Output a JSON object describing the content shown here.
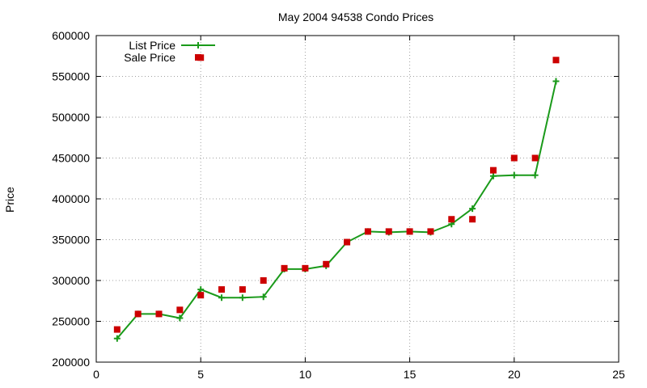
{
  "chart_data": {
    "type": "line",
    "title": "May 2004 94538 Condo Prices",
    "xlabel": "",
    "ylabel": "Price",
    "xlim": [
      0,
      25
    ],
    "ylim": [
      200000,
      600000
    ],
    "grid": true,
    "legend_position": "top-left",
    "x_ticks": [
      "0",
      "5",
      "10",
      "15",
      "20",
      "25"
    ],
    "y_ticks": [
      "200000",
      "250000",
      "300000",
      "350000",
      "400000",
      "450000",
      "500000",
      "550000",
      "600000"
    ],
    "series": [
      {
        "name": "List Price",
        "style": "line+cross",
        "color": "#1a9a1a",
        "points": [
          [
            1,
            229000
          ],
          [
            2,
            259000
          ],
          [
            3,
            259000
          ],
          [
            4,
            254000
          ],
          [
            5,
            289000
          ],
          [
            6,
            279000
          ],
          [
            7,
            279000
          ],
          [
            8,
            280000
          ],
          [
            9,
            314000
          ],
          [
            10,
            314000
          ],
          [
            11,
            318000
          ],
          [
            12,
            347000
          ],
          [
            13,
            360000
          ],
          [
            14,
            359000
          ],
          [
            15,
            360000
          ],
          [
            16,
            359000
          ],
          [
            17,
            369000
          ],
          [
            18,
            388000
          ],
          [
            19,
            428000
          ],
          [
            20,
            429000
          ],
          [
            21,
            429000
          ],
          [
            22,
            544000
          ]
        ]
      },
      {
        "name": "Sale Price",
        "style": "square",
        "color": "#cc0000",
        "points": [
          [
            1,
            240000
          ],
          [
            2,
            259000
          ],
          [
            3,
            259000
          ],
          [
            4,
            264000
          ],
          [
            5,
            282000
          ],
          [
            5,
            573000
          ],
          [
            6,
            289000
          ],
          [
            7,
            289000
          ],
          [
            8,
            300000
          ],
          [
            9,
            315000
          ],
          [
            10,
            315000
          ],
          [
            11,
            320000
          ],
          [
            12,
            347000
          ],
          [
            13,
            360000
          ],
          [
            14,
            360000
          ],
          [
            15,
            360000
          ],
          [
            16,
            360000
          ],
          [
            17,
            375000
          ],
          [
            18,
            375000
          ],
          [
            19,
            435000
          ],
          [
            20,
            450000
          ],
          [
            21,
            450000
          ],
          [
            22,
            570000
          ]
        ]
      }
    ]
  }
}
